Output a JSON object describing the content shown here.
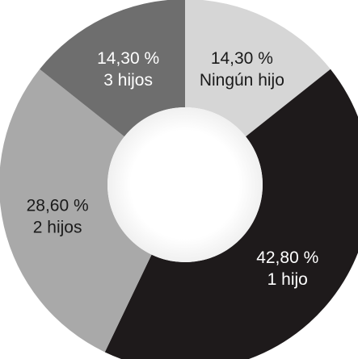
{
  "chart_data": {
    "type": "pie",
    "donut": true,
    "legend": "none",
    "slices": [
      {
        "percent_label": "14,30 %",
        "name": "Ningún hijo",
        "value": 14.3,
        "color": "#d6d6d6",
        "text_color": "#1a1a1a"
      },
      {
        "percent_label": "42,80 %",
        "name": "1 hijo",
        "value": 42.8,
        "color": "#1e1a1b",
        "text_color": "#ffffff"
      },
      {
        "percent_label": "28,60 %",
        "name": "2 hijos",
        "value": 28.6,
        "color": "#a9a9a9",
        "text_color": "#1a1a1a"
      },
      {
        "percent_label": "14,30 %",
        "name": "3 hijos",
        "value": 14.3,
        "color": "#6e6e6e",
        "text_color": "#ffffff"
      }
    ]
  }
}
